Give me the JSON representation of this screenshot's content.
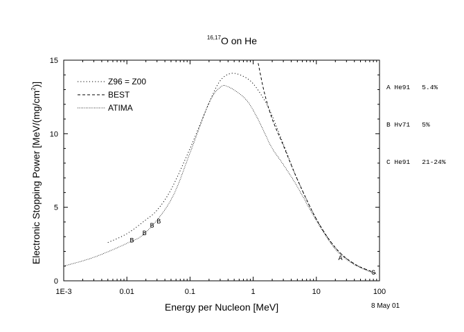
{
  "chart_data": {
    "type": "line",
    "title_sup": "16,17",
    "title_main": "O on He",
    "xlabel": "Energy per Nucleon [MeV]",
    "ylabel_pre": "Electronic Stopping Power [MeV/(mg/cm",
    "ylabel_sup": "2",
    "ylabel_post": ")]",
    "x_scale": "log",
    "xlim": [
      0.001,
      100
    ],
    "ylim": [
      0,
      15
    ],
    "x_ticks": [
      {
        "v": 0.001,
        "label": "1E-3"
      },
      {
        "v": 0.01,
        "label": "0.01"
      },
      {
        "v": 0.1,
        "label": "0.1"
      },
      {
        "v": 1,
        "label": "1"
      },
      {
        "v": 10,
        "label": "10"
      },
      {
        "v": 100,
        "label": "100"
      }
    ],
    "y_ticks": [
      {
        "v": 0,
        "label": "0"
      },
      {
        "v": 5,
        "label": "5"
      },
      {
        "v": 10,
        "label": "10"
      },
      {
        "v": 15,
        "label": "15"
      }
    ],
    "series": [
      {
        "name": "Z96 = Z00",
        "dash": "1.2,3",
        "x": [
          0.005,
          0.01,
          0.02,
          0.03,
          0.05,
          0.1,
          0.2,
          0.3,
          0.45,
          0.7,
          1,
          1.5,
          2,
          3,
          5,
          10,
          20,
          40,
          90
        ],
        "y": [
          2.6,
          3.2,
          4.15,
          4.8,
          6.2,
          9.0,
          12.1,
          13.6,
          14.1,
          13.9,
          13.4,
          12.3,
          11.2,
          9.3,
          6.9,
          4.2,
          2.25,
          1.15,
          0.5
        ]
      },
      {
        "name": "BEST",
        "dash": "4,3",
        "x": [
          1.2,
          1.5,
          2,
          3,
          5,
          10,
          20,
          40,
          90
        ],
        "y": [
          14.8,
          12.8,
          11.0,
          9.2,
          6.9,
          4.2,
          2.25,
          1.15,
          0.5
        ]
      },
      {
        "name": "ATIMA",
        "dash": "0.8,1.6",
        "x": [
          0.001,
          0.003,
          0.01,
          0.02,
          0.05,
          0.1,
          0.2,
          0.3,
          0.4,
          0.7,
          1,
          1.5,
          2,
          3,
          5,
          10,
          20,
          40,
          90
        ],
        "y": [
          1.0,
          1.6,
          2.55,
          3.3,
          5.5,
          8.7,
          12.1,
          13.15,
          13.2,
          12.5,
          11.6,
          10.1,
          9.0,
          7.9,
          6.4,
          4.1,
          2.15,
          1.1,
          0.45
        ]
      }
    ],
    "data_points": [
      {
        "label": "B",
        "x": 0.012,
        "y": 2.8
      },
      {
        "label": "B",
        "x": 0.019,
        "y": 3.3
      },
      {
        "label": "B",
        "x": 0.025,
        "y": 3.8
      },
      {
        "label": "B",
        "x": 0.032,
        "y": 4.1
      },
      {
        "label": "A",
        "x": 24,
        "y": 1.6
      },
      {
        "label": "C",
        "x": 80,
        "y": 0.6
      }
    ],
    "references": [
      "A He91   5.4%",
      "B Hv71   5%",
      "C He91   21-24%"
    ],
    "date": "8 May 01"
  }
}
